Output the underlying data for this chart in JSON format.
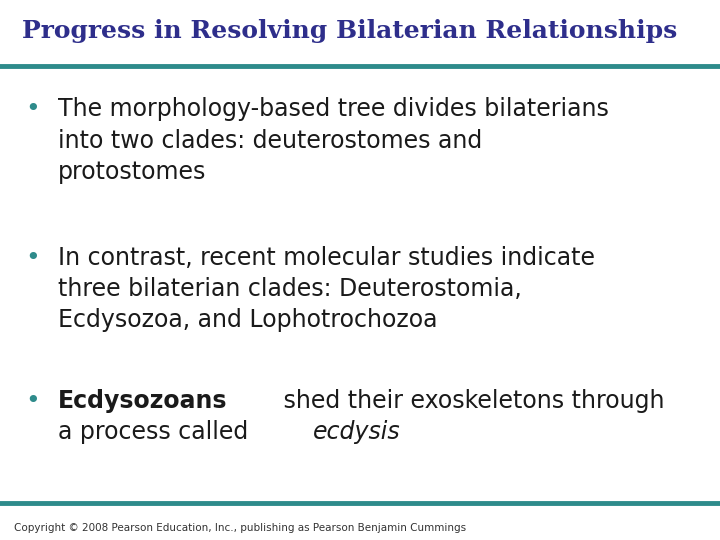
{
  "title": "Progress in Resolving Bilaterian Relationships",
  "title_color": "#2E2E8B",
  "title_fontsize": 18,
  "background_color": "#FFFFFF",
  "top_line_color": "#2E8B8B",
  "bottom_line_color": "#2E8B8B",
  "line_thickness": 3.5,
  "bullet_color": "#2E8B8B",
  "bullet_fontsize": 17,
  "text_color": "#1A1A1A",
  "copyright_text": "Copyright © 2008 Pearson Education, Inc., publishing as Pearson Benjamin Cummings",
  "copyright_fontsize": 7.5,
  "copyright_color": "#333333",
  "bullet1_line1": "The morphology-based tree divides bilaterians",
  "bullet1_line2": "into two clades: deuterostomes and",
  "bullet1_line3": "protostomes",
  "bullet2_line1": "In contrast, recent molecular studies indicate",
  "bullet2_line2": "three bilaterian clades: Deuterostomia,",
  "bullet2_line3": "Ecdysozoa, and Lophotrochozoa",
  "bullet3_bold": "Ecdysozoans",
  "bullet3_normal1": " shed their exoskeletons through",
  "bullet3_line2_normal": "a process called ",
  "bullet3_italic": "ecdysis"
}
